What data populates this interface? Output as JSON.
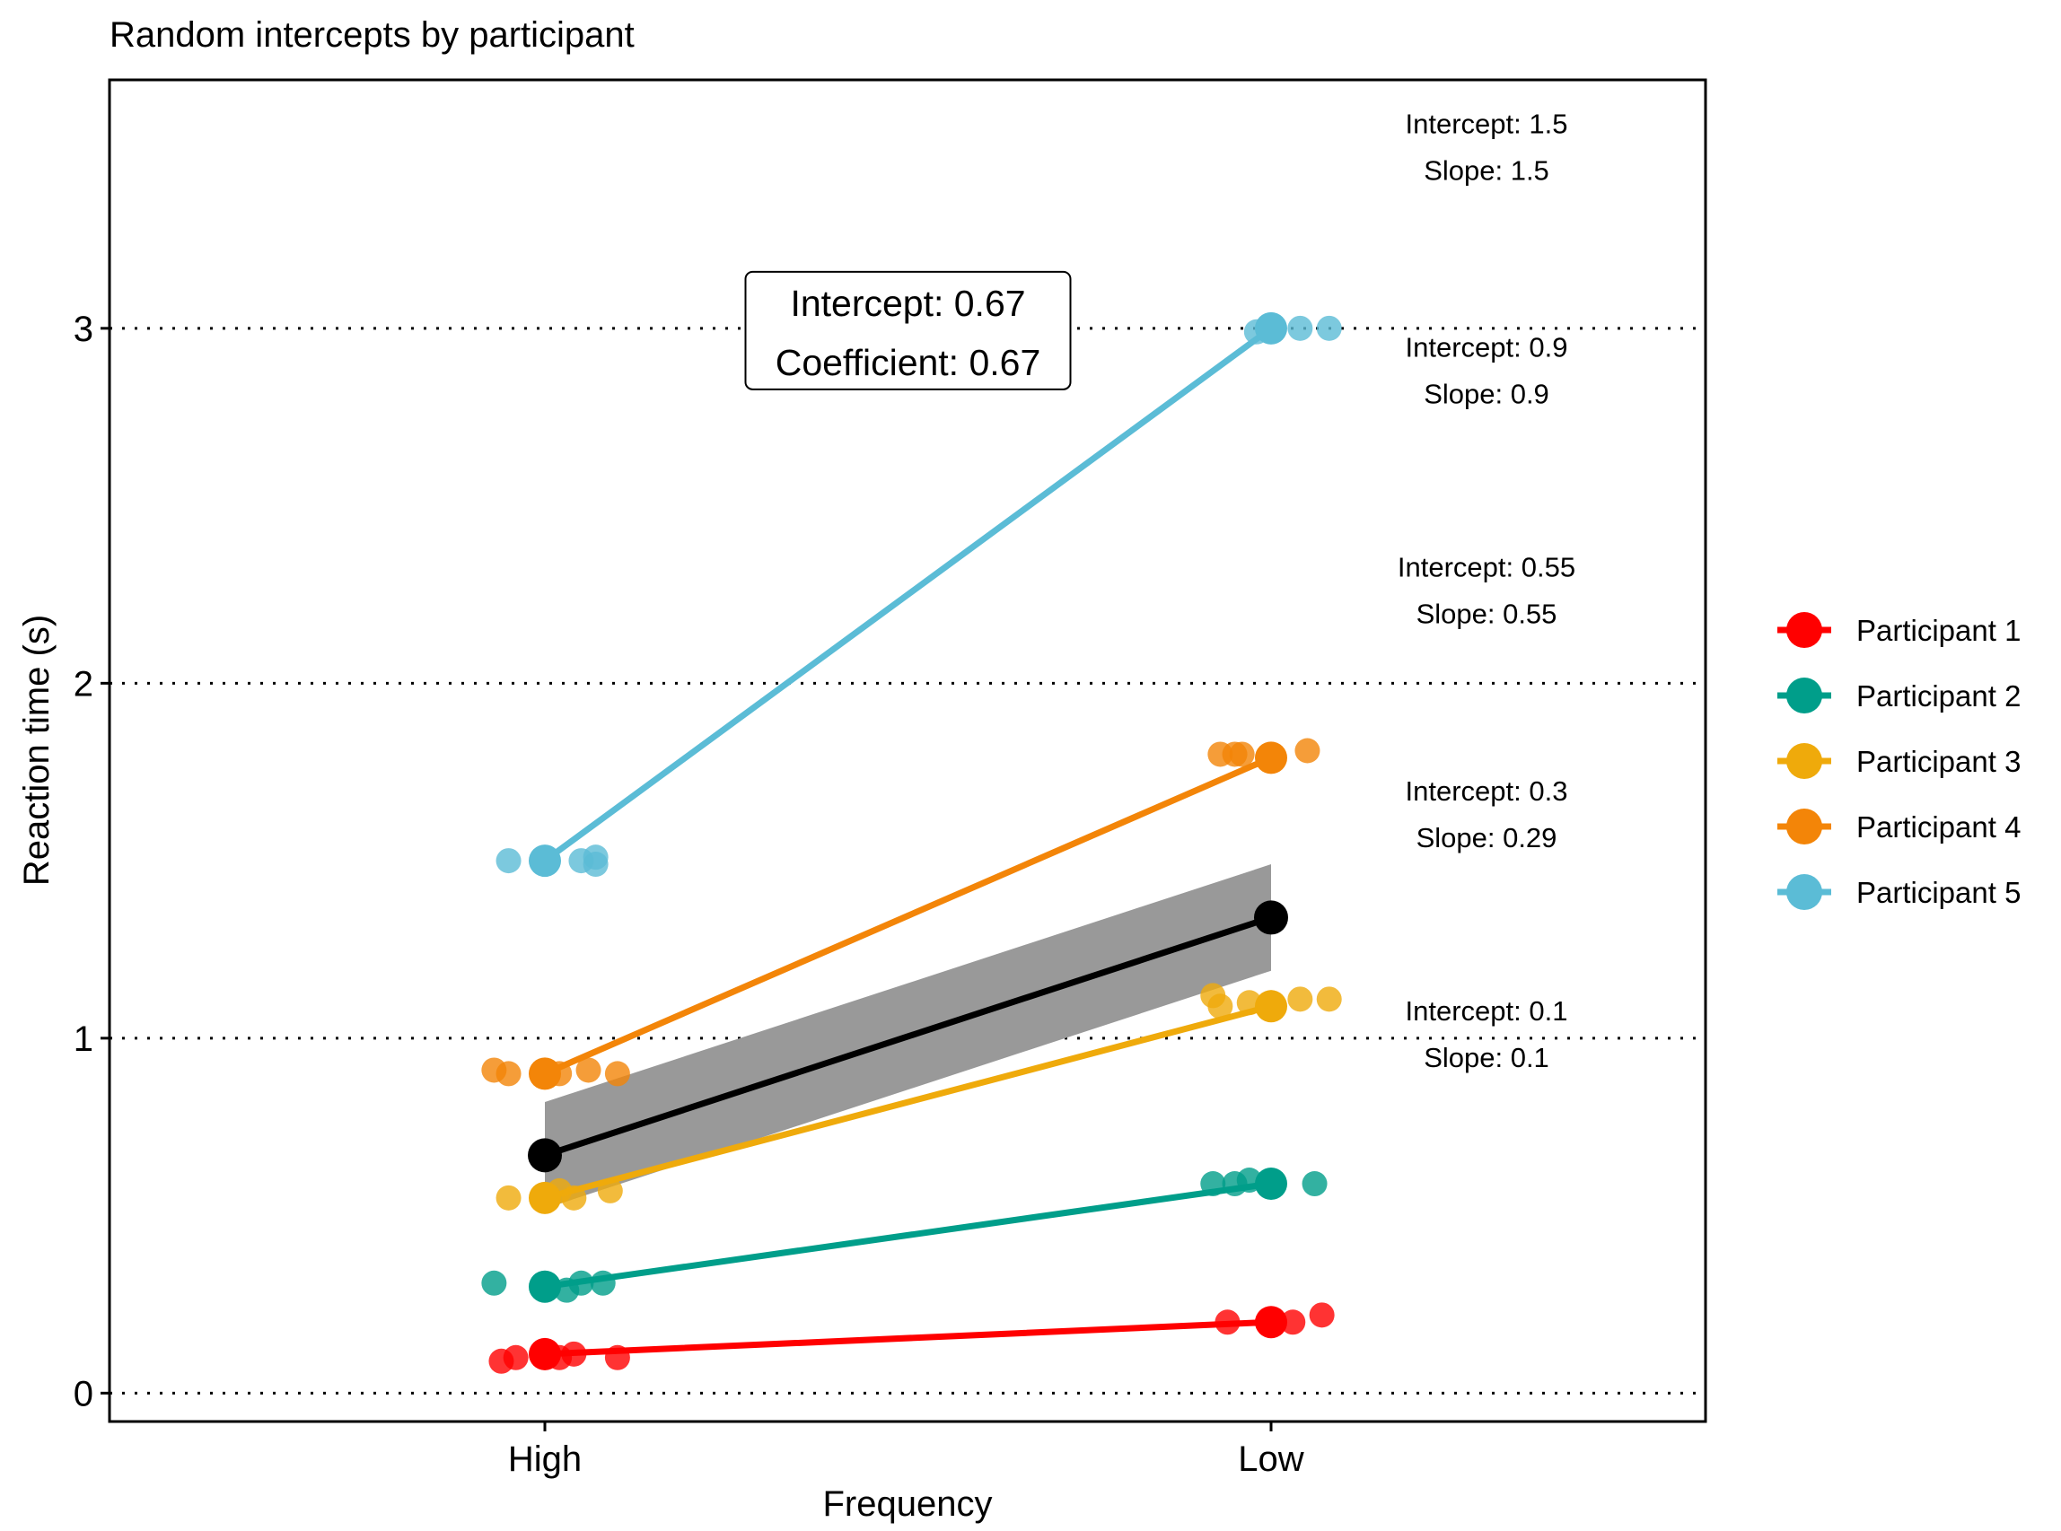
{
  "chart_data": {
    "type": "scatter",
    "title": "Random intercepts by participant",
    "xlabel": "Frequency",
    "ylabel": "Reaction time (s)",
    "categories": [
      "High",
      "Low"
    ],
    "ylim": [
      -0.08,
      3.7
    ],
    "yticks": [
      0,
      1,
      2,
      3
    ],
    "grid": "dotted horizontal lines at y ticks",
    "legend": "right",
    "series": [
      {
        "name": "Participant 1",
        "color": "#FF0000",
        "line": [
          0.11,
          0.2
        ],
        "points": [
          {
            "x": "High",
            "offset": -0.06,
            "y": 0.09
          },
          {
            "x": "High",
            "offset": -0.04,
            "y": 0.1
          },
          {
            "x": "High",
            "offset": 0.0,
            "y": 0.1
          },
          {
            "x": "High",
            "offset": 0.02,
            "y": 0.1
          },
          {
            "x": "High",
            "offset": 0.04,
            "y": 0.11
          },
          {
            "x": "High",
            "offset": 0.1,
            "y": 0.1
          },
          {
            "x": "Low",
            "offset": -0.06,
            "y": 0.2
          },
          {
            "x": "Low",
            "offset": 0.0,
            "y": 0.2
          },
          {
            "x": "Low",
            "offset": 0.03,
            "y": 0.2
          },
          {
            "x": "Low",
            "offset": 0.07,
            "y": 0.22
          }
        ]
      },
      {
        "name": "Participant 2",
        "color": "#009E8A",
        "line": [
          0.3,
          0.59
        ],
        "points": [
          {
            "x": "High",
            "offset": -0.07,
            "y": 0.31
          },
          {
            "x": "High",
            "offset": 0.0,
            "y": 0.3
          },
          {
            "x": "High",
            "offset": 0.03,
            "y": 0.29
          },
          {
            "x": "High",
            "offset": 0.05,
            "y": 0.31
          },
          {
            "x": "High",
            "offset": 0.08,
            "y": 0.31
          },
          {
            "x": "Low",
            "offset": -0.08,
            "y": 0.59
          },
          {
            "x": "Low",
            "offset": -0.05,
            "y": 0.59
          },
          {
            "x": "Low",
            "offset": -0.03,
            "y": 0.6
          },
          {
            "x": "Low",
            "offset": 0.0,
            "y": 0.59
          },
          {
            "x": "Low",
            "offset": 0.06,
            "y": 0.59
          }
        ]
      },
      {
        "name": "Participant 3",
        "color": "#EFAA0B",
        "line": [
          0.55,
          1.09
        ],
        "points": [
          {
            "x": "High",
            "offset": -0.05,
            "y": 0.55
          },
          {
            "x": "High",
            "offset": 0.0,
            "y": 0.55
          },
          {
            "x": "High",
            "offset": 0.02,
            "y": 0.57
          },
          {
            "x": "High",
            "offset": 0.04,
            "y": 0.55
          },
          {
            "x": "High",
            "offset": 0.09,
            "y": 0.57
          },
          {
            "x": "Low",
            "offset": -0.08,
            "y": 1.12
          },
          {
            "x": "Low",
            "offset": -0.07,
            "y": 1.09
          },
          {
            "x": "Low",
            "offset": -0.03,
            "y": 1.1
          },
          {
            "x": "Low",
            "offset": 0.0,
            "y": 1.1
          },
          {
            "x": "Low",
            "offset": 0.04,
            "y": 1.11
          },
          {
            "x": "Low",
            "offset": 0.08,
            "y": 1.11
          }
        ]
      },
      {
        "name": "Participant 4",
        "color": "#F38508",
        "line": [
          0.9,
          1.79
        ],
        "points": [
          {
            "x": "High",
            "offset": -0.07,
            "y": 0.91
          },
          {
            "x": "High",
            "offset": -0.05,
            "y": 0.9
          },
          {
            "x": "High",
            "offset": 0.0,
            "y": 0.9
          },
          {
            "x": "High",
            "offset": 0.02,
            "y": 0.9
          },
          {
            "x": "High",
            "offset": 0.06,
            "y": 0.91
          },
          {
            "x": "High",
            "offset": 0.1,
            "y": 0.9
          },
          {
            "x": "Low",
            "offset": -0.07,
            "y": 1.8
          },
          {
            "x": "Low",
            "offset": -0.05,
            "y": 1.8
          },
          {
            "x": "Low",
            "offset": -0.04,
            "y": 1.8
          },
          {
            "x": "Low",
            "offset": 0.0,
            "y": 1.8
          },
          {
            "x": "Low",
            "offset": 0.05,
            "y": 1.81
          }
        ]
      },
      {
        "name": "Participant 5",
        "color": "#5BBCD6",
        "line": [
          1.5,
          3.0
        ],
        "points": [
          {
            "x": "High",
            "offset": -0.05,
            "y": 1.5
          },
          {
            "x": "High",
            "offset": 0.0,
            "y": 1.5
          },
          {
            "x": "High",
            "offset": 0.05,
            "y": 1.5
          },
          {
            "x": "High",
            "offset": 0.07,
            "y": 1.49
          },
          {
            "x": "High",
            "offset": 0.07,
            "y": 1.51
          },
          {
            "x": "Low",
            "offset": -0.02,
            "y": 2.99
          },
          {
            "x": "Low",
            "offset": 0.0,
            "y": 3.0
          },
          {
            "x": "Low",
            "offset": 0.04,
            "y": 3.0
          },
          {
            "x": "Low",
            "offset": 0.08,
            "y": 3.0
          }
        ]
      }
    ],
    "fixed_effect": {
      "color": "#000000",
      "ribbon_color": "#999999",
      "high": {
        "y": 0.67,
        "ymin": 0.52,
        "ymax": 0.82
      },
      "low": {
        "y": 1.34,
        "ymin": 1.19,
        "ymax": 1.49
      }
    },
    "annotations": [
      {
        "line1": "Intercept: 1.5",
        "line2": "Slope: 1.5",
        "y": 3.55
      },
      {
        "line1": "Intercept: 0.9",
        "line2": "Slope: 0.9",
        "y": 2.92
      },
      {
        "line1": "Intercept: 0.55",
        "line2": "Slope: 0.55",
        "y": 2.3
      },
      {
        "line1": "Intercept: 0.3",
        "line2": "Slope: 0.29",
        "y": 1.67
      },
      {
        "line1": "Intercept: 0.1",
        "line2": "Slope: 0.1",
        "y": 1.05
      }
    ],
    "label_box": {
      "line1": "Intercept: 0.67",
      "line2": "Coefficient: 0.67",
      "x": 1.5,
      "y": 3.0
    }
  }
}
